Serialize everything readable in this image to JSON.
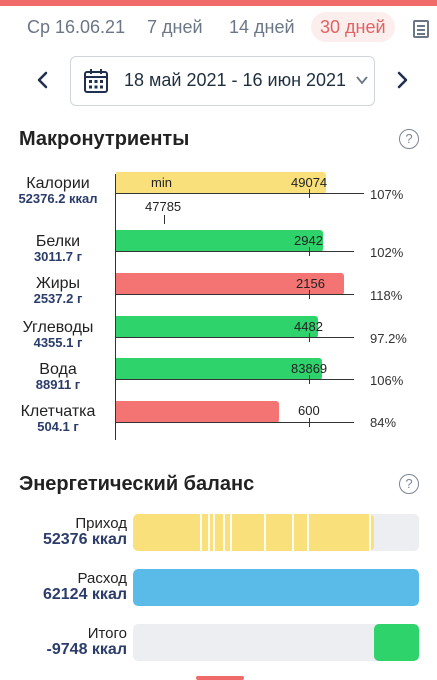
{
  "tabs": {
    "day": "Ср 16.06.21",
    "week": "7 дней",
    "two_weeks": "14 дней",
    "month": "30 дней"
  },
  "date_range": "18 май 2021 - 16 июн 2021",
  "macro": {
    "title": "Макронутриенты",
    "help": "?",
    "rows": [
      {
        "label": "Калории",
        "value": "52376.2 ккал",
        "bar_value": "49074",
        "pct": "107%",
        "color": "#f9e07a"
      },
      {
        "label": "Белки",
        "value": "3011.7 г",
        "bar_value": "2942",
        "pct": "102%",
        "color": "#2fd36b"
      },
      {
        "label": "Жиры",
        "value": "2537.2 г",
        "bar_value": "2156",
        "pct": "118%",
        "color": "#f47474"
      },
      {
        "label": "Углеводы",
        "value": "4355.1 г",
        "bar_value": "4482",
        "pct": "97.2%",
        "color": "#2fd36b"
      },
      {
        "label": "Вода",
        "value": "88911 г",
        "bar_value": "83869",
        "pct": "106%",
        "color": "#2fd36b"
      },
      {
        "label": "Клетчатка",
        "value": "504.1 г",
        "bar_value": "600",
        "pct": "84%",
        "color": "#f47474"
      }
    ],
    "calories_min_label": "min",
    "calories_min_value": "47785"
  },
  "energy": {
    "title": "Энергетический баланс",
    "help": "?",
    "income_label": "Приход",
    "income_value": "52376 ккал",
    "expense_label": "Расход",
    "expense_value": "62124 ккал",
    "total_label": "Итого",
    "total_value": "-9748 ккал",
    "colors": {
      "income": "#f9e07a",
      "expense": "#5bbbe8",
      "total": "#2fd36b"
    }
  },
  "colors": {
    "accent": "#e06262",
    "value_text": "#2b3c6b"
  }
}
